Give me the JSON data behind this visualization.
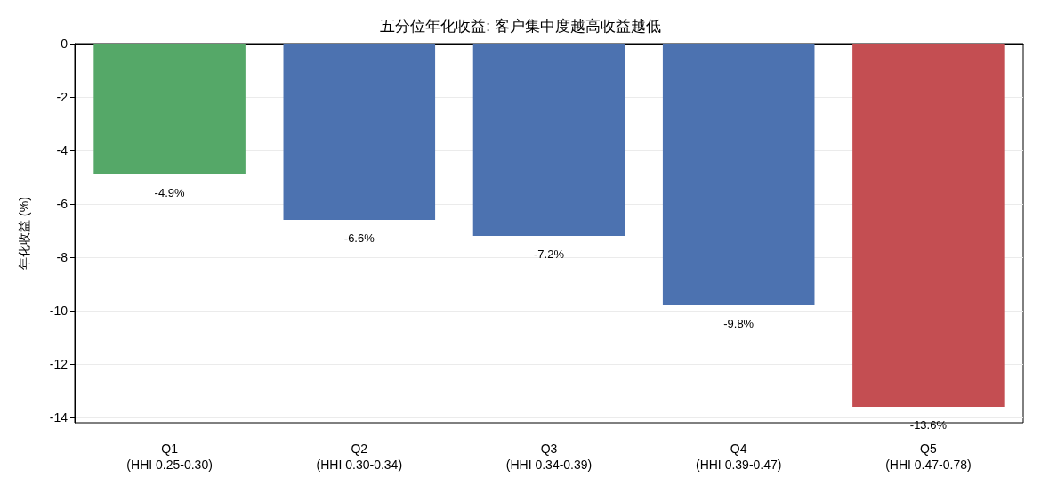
{
  "chart_data": {
    "type": "bar",
    "title": "五分位年化收益: 客户集中度越高收益越低",
    "ylabel": "年化收益 (%)",
    "categories": [
      "Q1\n(HHI 0.25-0.30)",
      "Q2\n(HHI 0.30-0.34)",
      "Q3\n(HHI 0.34-0.39)",
      "Q4\n(HHI 0.39-0.47)",
      "Q5\n(HHI 0.47-0.78)"
    ],
    "values": [
      -4.9,
      -6.6,
      -7.2,
      -9.8,
      -13.6
    ],
    "colors": [
      "#55a868",
      "#4c72b0",
      "#4c72b0",
      "#4c72b0",
      "#c44e52"
    ],
    "value_labels": [
      "-4.9%",
      "-6.6%",
      "-7.2%",
      "-9.8%",
      "-13.6%"
    ],
    "ylim": [
      -14.2,
      0
    ],
    "yticks": [
      0,
      -2,
      -4,
      -6,
      -8,
      -10,
      -12,
      -14
    ],
    "grid": "y"
  }
}
